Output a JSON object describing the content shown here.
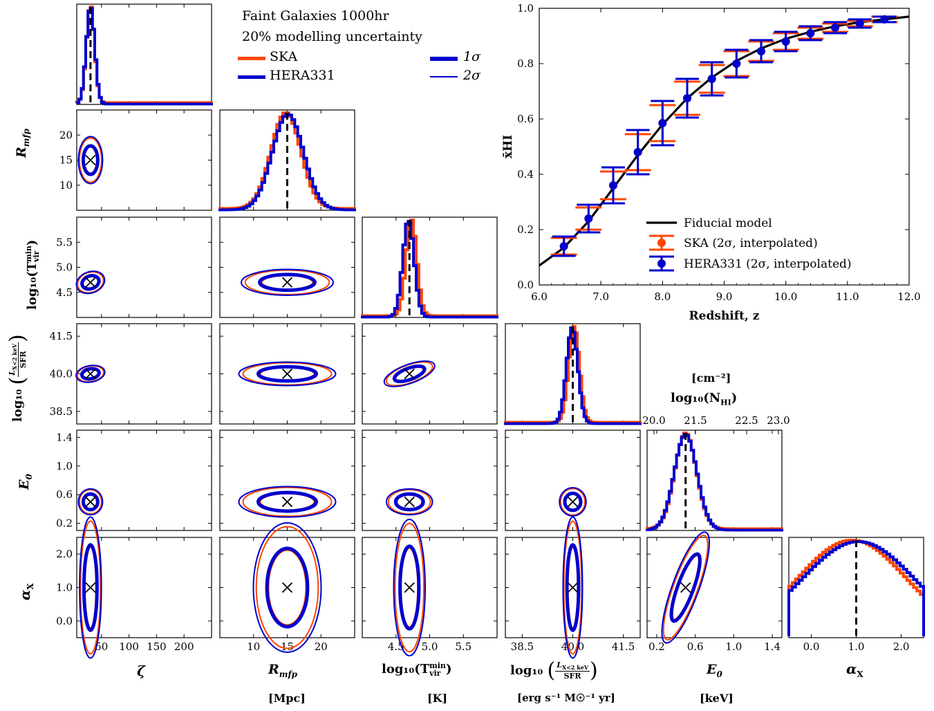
{
  "colors": {
    "ska": "#ff4500",
    "hera": "#0000cd",
    "fiducial": "#000000"
  },
  "corner_legend": {
    "title1": "Faint Galaxies 1000hr",
    "title2": "20% modelling uncertainty",
    "ska": "SKA",
    "hera": "HERA331",
    "sig1": "1σ",
    "sig2": "2σ"
  },
  "xlabels": {
    "zeta": "ζ",
    "rmfp": "R",
    "rmfp_sub": "mfp",
    "tvir": "log₁₀(T",
    "tvir_sup": "min",
    "tvir_sub": "vir",
    "tvir_close": ")",
    "lx": "log₁₀",
    "lx_num": "L",
    "lx_num_sub": "X<2 keV",
    "lx_den": "SFR",
    "e0": "E",
    "e0_sub": "0",
    "ax": "α",
    "ax_sub": "X"
  },
  "units": {
    "rmfp": "[Mpc]",
    "tvir": "[K]",
    "lx": "[erg s⁻¹ M☉⁻¹ yr]",
    "e0": "[keV]"
  },
  "nhi_axis": {
    "unit": "[cm⁻²]",
    "label": "log₁₀(N",
    "label_sub": "HI",
    "label_close": ")",
    "ticks": [
      "20.0",
      "21.5",
      "22.5",
      "23.0"
    ]
  },
  "ylabels": {
    "rmfp": "R",
    "rmfp_sub": "mfp",
    "tvir": "log₁₀(T",
    "tvir_sup": "min",
    "tvir_sub": "vir",
    "tvir_close": ")",
    "lx": "log₁₀",
    "lx_num": "L",
    "lx_num_sub": "X<2 keV",
    "lx_den": "SFR",
    "e0": "E",
    "e0_sub": "0",
    "ax": "α",
    "ax_sub": "X"
  },
  "ticks": {
    "zeta": [
      "50",
      "100",
      "150",
      "200"
    ],
    "rmfp": [
      "10",
      "15",
      "20"
    ],
    "tvir_x": [
      "4.5",
      "5.0",
      "5.5"
    ],
    "tvir_y": [
      "4.5",
      "5.0",
      "5.5"
    ],
    "lx": [
      "38.5",
      "40.0",
      "41.5"
    ],
    "e0": [
      "0.2",
      "0.6",
      "1.0",
      "1.4"
    ],
    "e0_y": [
      "0.2",
      "0.6",
      "1.0",
      "1.4"
    ],
    "ax": [
      "0.0",
      "1.0",
      "2.0"
    ]
  },
  "chart_data": [
    {
      "type": "line",
      "xlabel": "Redshift, z",
      "ylabel": "x̄HI",
      "xlim": [
        6.0,
        12.0
      ],
      "ylim": [
        0.0,
        1.0
      ],
      "xticks": [
        "6.0",
        "7.0",
        "8.0",
        "9.0",
        "10.0",
        "11.0",
        "12.0"
      ],
      "yticks": [
        "0.0",
        "0.2",
        "0.4",
        "0.6",
        "0.8",
        "1.0"
      ],
      "legend": [
        "Fiducial model",
        "SKA (2σ, interpolated)",
        "HERA331 (2σ, interpolated)"
      ],
      "legend_position": "lower-right",
      "series": [
        {
          "name": "Fiducial model",
          "x": [
            6.0,
            6.4,
            6.8,
            7.2,
            7.6,
            8.0,
            8.4,
            8.8,
            9.2,
            9.6,
            10.0,
            10.4,
            10.8,
            11.2,
            11.6,
            12.0
          ],
          "values": [
            0.07,
            0.135,
            0.23,
            0.35,
            0.47,
            0.58,
            0.675,
            0.75,
            0.81,
            0.855,
            0.89,
            0.915,
            0.935,
            0.95,
            0.96,
            0.97
          ]
        },
        {
          "name": "SKA (2σ, interpolated)",
          "x": [
            6.0,
            6.4,
            6.8,
            7.2,
            7.6,
            8.0,
            8.4,
            8.8,
            9.2,
            9.6,
            10.0,
            10.4,
            10.8,
            11.2,
            11.6,
            12.0
          ],
          "values": [
            0.07,
            0.14,
            0.24,
            0.36,
            0.48,
            0.585,
            0.675,
            0.745,
            0.8,
            0.845,
            0.88,
            0.91,
            0.93,
            0.945,
            0.96,
            0.97
          ],
          "err_low": [
            0.01,
            0.03,
            0.04,
            0.05,
            0.065,
            0.065,
            0.06,
            0.05,
            0.045,
            0.035,
            0.03,
            0.02,
            0.015,
            0.01,
            0.01,
            0.01
          ],
          "err_high": [
            0.01,
            0.03,
            0.04,
            0.05,
            0.065,
            0.065,
            0.06,
            0.05,
            0.045,
            0.035,
            0.03,
            0.02,
            0.015,
            0.01,
            0.01,
            0.01
          ]
        },
        {
          "name": "HERA331 (2σ, interpolated)",
          "x": [
            6.0,
            6.4,
            6.8,
            7.2,
            7.6,
            8.0,
            8.4,
            8.8,
            9.2,
            9.6,
            10.0,
            10.4,
            10.8,
            11.2,
            11.6,
            12.0
          ],
          "values": [
            0.07,
            0.14,
            0.24,
            0.36,
            0.48,
            0.585,
            0.675,
            0.745,
            0.8,
            0.845,
            0.88,
            0.91,
            0.93,
            0.945,
            0.96,
            0.97
          ],
          "err_low": [
            0.015,
            0.035,
            0.05,
            0.065,
            0.08,
            0.08,
            0.07,
            0.06,
            0.05,
            0.04,
            0.035,
            0.025,
            0.02,
            0.015,
            0.01,
            0.01
          ],
          "err_high": [
            0.015,
            0.035,
            0.05,
            0.065,
            0.08,
            0.08,
            0.07,
            0.06,
            0.05,
            0.04,
            0.035,
            0.025,
            0.02,
            0.015,
            0.01,
            0.01
          ]
        }
      ]
    },
    {
      "type": "scatter",
      "parameters": [
        "ζ",
        "R_mfp",
        "log10(T_vir^min)",
        "log10(L_X<2keV/SFR)",
        "E_0",
        "α_X"
      ],
      "fiducial": [
        30,
        15,
        4.7,
        40.0,
        0.5,
        1.0
      ],
      "ranges": [
        [
          5,
          250
        ],
        [
          5,
          25
        ],
        [
          4.0,
          6.0
        ],
        [
          38.0,
          42.0
        ],
        [
          0.1,
          1.5
        ],
        [
          -0.5,
          2.5
        ]
      ]
    }
  ]
}
